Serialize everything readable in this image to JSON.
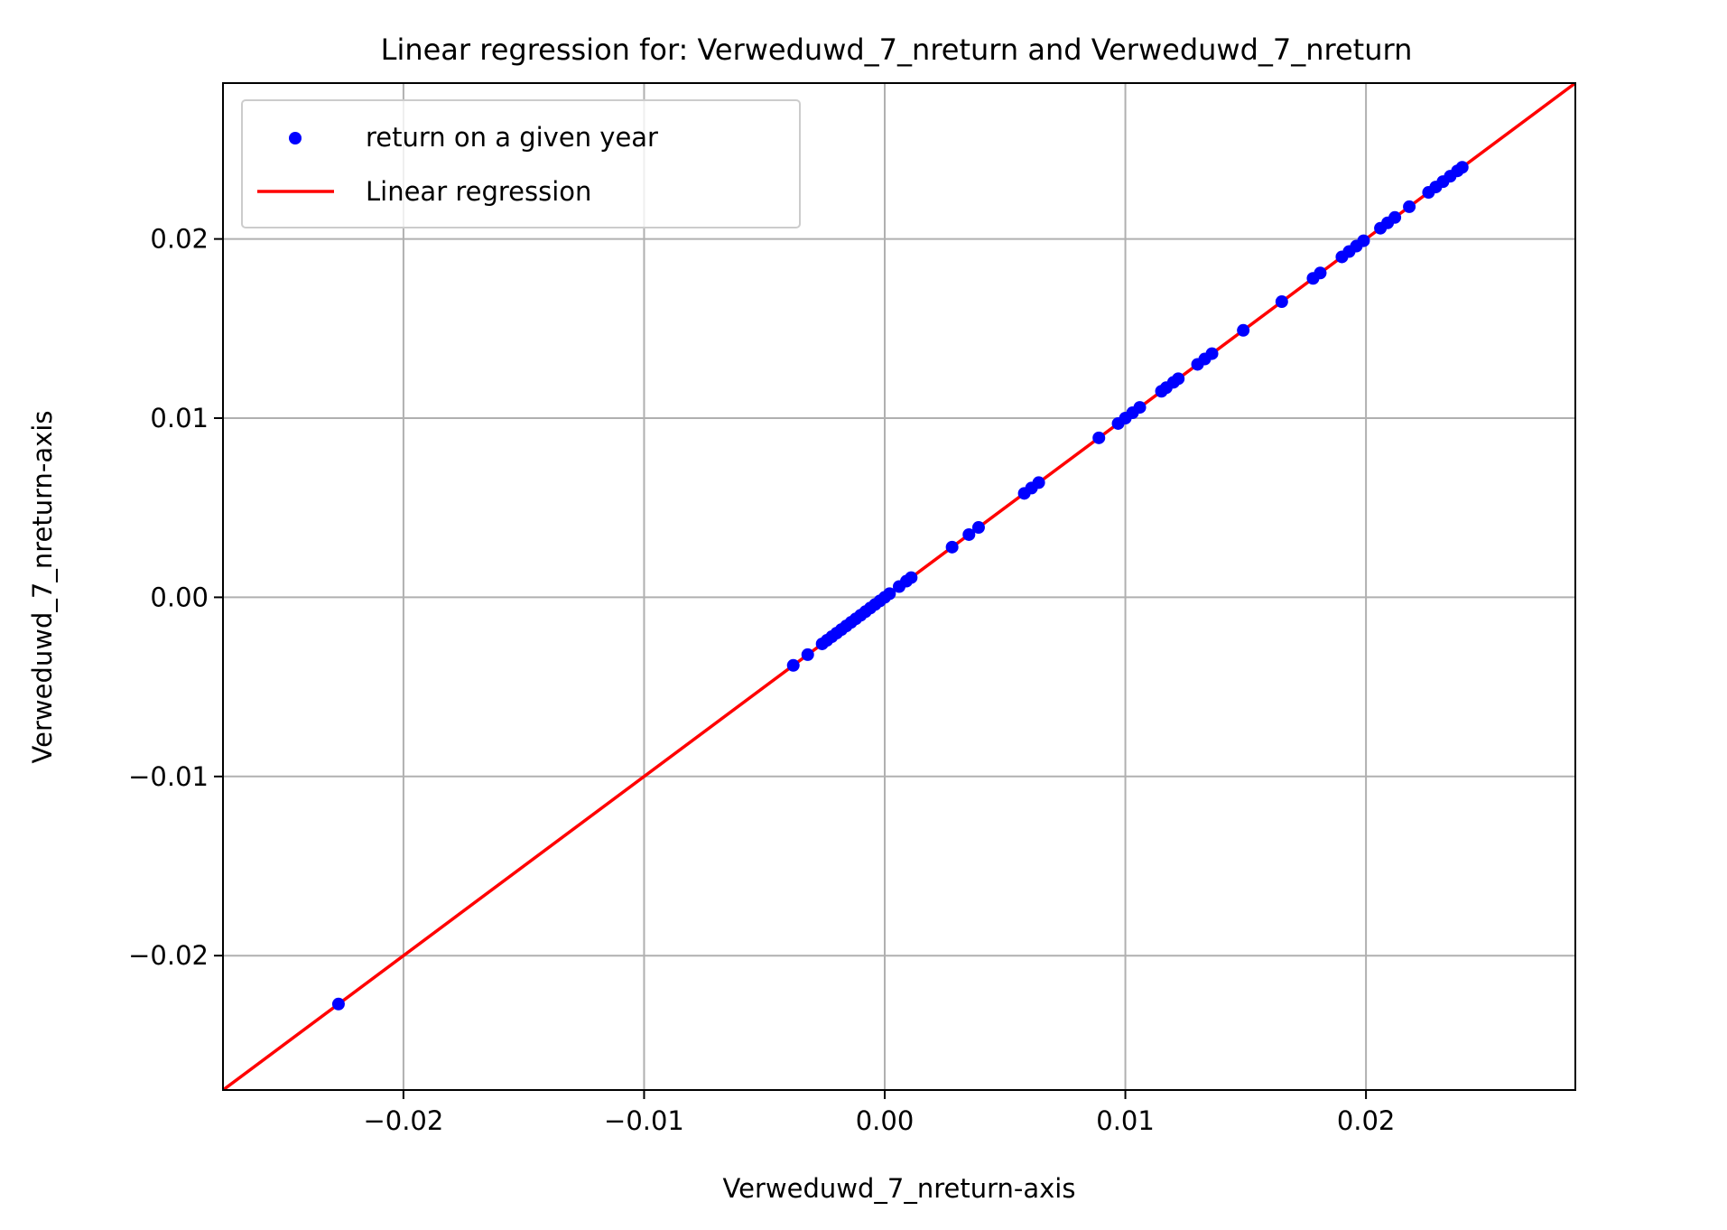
{
  "chart_data": {
    "type": "scatter",
    "title": "Linear regression for: Verweduwd_7_nreturn and Verweduwd_7_nreturn",
    "xlabel": "Verweduwd_7_nreturn-axis",
    "ylabel": "Verweduwd_7_nreturn-axis",
    "xlim": [
      -0.0275,
      0.0287
    ],
    "ylim": [
      -0.0275,
      0.0287
    ],
    "x_ticks": [
      -0.02,
      -0.01,
      0.0,
      0.01,
      0.02
    ],
    "x_tick_labels": [
      "−0.02",
      "−0.01",
      "0.00",
      "0.01",
      "0.02"
    ],
    "y_ticks": [
      -0.02,
      -0.01,
      0.0,
      0.01,
      0.02
    ],
    "y_tick_labels": [
      "−0.02",
      "−0.01",
      "0.00",
      "0.01",
      "0.02"
    ],
    "grid": true,
    "legend_position": "top-left",
    "legend": [
      {
        "label": "return on a given year",
        "kind": "marker",
        "color": "#0000ff"
      },
      {
        "label": "Linear regression",
        "kind": "line",
        "color": "#ff0000"
      }
    ],
    "series": [
      {
        "name": "return on a given year",
        "kind": "scatter",
        "color": "#0000ff",
        "points": [
          [
            -0.0227,
            -0.0227
          ],
          [
            -0.0038,
            -0.0038
          ],
          [
            -0.0032,
            -0.0032
          ],
          [
            -0.0026,
            -0.0026
          ],
          [
            -0.0024,
            -0.0024
          ],
          [
            -0.0022,
            -0.0022
          ],
          [
            -0.002,
            -0.002
          ],
          [
            -0.0018,
            -0.0018
          ],
          [
            -0.0016,
            -0.0016
          ],
          [
            -0.0014,
            -0.0014
          ],
          [
            -0.0012,
            -0.0012
          ],
          [
            -0.001,
            -0.001
          ],
          [
            -0.0008,
            -0.0008
          ],
          [
            -0.0006,
            -0.0006
          ],
          [
            -0.0004,
            -0.0004
          ],
          [
            -0.0002,
            -0.0002
          ],
          [
            0.0,
            0.0
          ],
          [
            0.0002,
            0.0002
          ],
          [
            0.0006,
            0.0006
          ],
          [
            0.0009,
            0.0009
          ],
          [
            0.0011,
            0.0011
          ],
          [
            0.0028,
            0.0028
          ],
          [
            0.0035,
            0.0035
          ],
          [
            0.0039,
            0.0039
          ],
          [
            0.0058,
            0.0058
          ],
          [
            0.0061,
            0.0061
          ],
          [
            0.0064,
            0.0064
          ],
          [
            0.0089,
            0.0089
          ],
          [
            0.0097,
            0.0097
          ],
          [
            0.01,
            0.01
          ],
          [
            0.0103,
            0.0103
          ],
          [
            0.0106,
            0.0106
          ],
          [
            0.0115,
            0.0115
          ],
          [
            0.0117,
            0.0117
          ],
          [
            0.012,
            0.012
          ],
          [
            0.0122,
            0.0122
          ],
          [
            0.013,
            0.013
          ],
          [
            0.0133,
            0.0133
          ],
          [
            0.0136,
            0.0136
          ],
          [
            0.0149,
            0.0149
          ],
          [
            0.0165,
            0.0165
          ],
          [
            0.0178,
            0.0178
          ],
          [
            0.0181,
            0.0181
          ],
          [
            0.019,
            0.019
          ],
          [
            0.0193,
            0.0193
          ],
          [
            0.0196,
            0.0196
          ],
          [
            0.0199,
            0.0199
          ],
          [
            0.0206,
            0.0206
          ],
          [
            0.0209,
            0.0209
          ],
          [
            0.0212,
            0.0212
          ],
          [
            0.0218,
            0.0218
          ],
          [
            0.0226,
            0.0226
          ],
          [
            0.0229,
            0.0229
          ],
          [
            0.0232,
            0.0232
          ],
          [
            0.0235,
            0.0235
          ],
          [
            0.0238,
            0.0238
          ],
          [
            0.024,
            0.024
          ]
        ]
      },
      {
        "name": "Linear regression",
        "kind": "line",
        "color": "#ff0000",
        "slope": 1.0,
        "intercept": 0.0
      }
    ]
  }
}
